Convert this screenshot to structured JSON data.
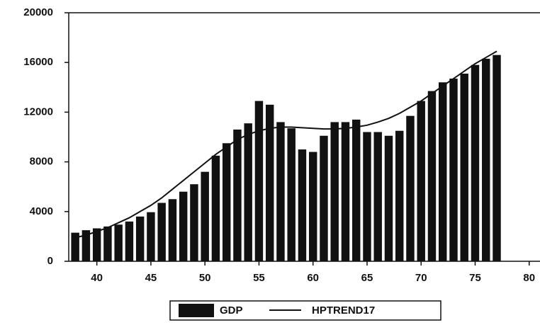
{
  "chart_data": {
    "type": "bar-line",
    "x": [
      38,
      39,
      40,
      41,
      42,
      43,
      44,
      45,
      46,
      47,
      48,
      49,
      50,
      51,
      52,
      53,
      54,
      55,
      56,
      57,
      58,
      59,
      60,
      61,
      62,
      63,
      64,
      65,
      66,
      67,
      68,
      69,
      70,
      71,
      72,
      73,
      74,
      75,
      76,
      77
    ],
    "series": [
      {
        "name": "GDP",
        "type": "bar",
        "color": "#111111",
        "values": [
          2300,
          2500,
          2650,
          2800,
          2950,
          3200,
          3600,
          3950,
          4700,
          5000,
          5600,
          6200,
          7200,
          8500,
          9500,
          10600,
          11100,
          12900,
          12600,
          11200,
          10700,
          9000,
          8800,
          10100,
          11200,
          11200,
          11400,
          10400,
          10400,
          10100,
          10500,
          11700,
          12900,
          13700,
          14400,
          14700,
          15100,
          15800,
          16300,
          16600
        ]
      },
      {
        "name": "HPTREND17",
        "type": "line",
        "color": "#111111",
        "values": [
          1900,
          2100,
          2400,
          2700,
          3100,
          3500,
          4000,
          4500,
          5100,
          5800,
          6500,
          7200,
          7900,
          8600,
          9200,
          9800,
          10200,
          10500,
          10700,
          10800,
          10800,
          10750,
          10700,
          10650,
          10650,
          10700,
          10800,
          10950,
          11200,
          11500,
          11900,
          12400,
          12900,
          13500,
          14100,
          14700,
          15300,
          15900,
          16400,
          16900
        ]
      }
    ],
    "xlim": [
      37.4,
      81
    ],
    "xticks": [
      40,
      45,
      50,
      55,
      60,
      65,
      70,
      75,
      80
    ],
    "ylim": [
      0,
      20000
    ],
    "yticks": [
      0,
      4000,
      8000,
      12000,
      16000,
      20000
    ],
    "legend": "bottom"
  }
}
